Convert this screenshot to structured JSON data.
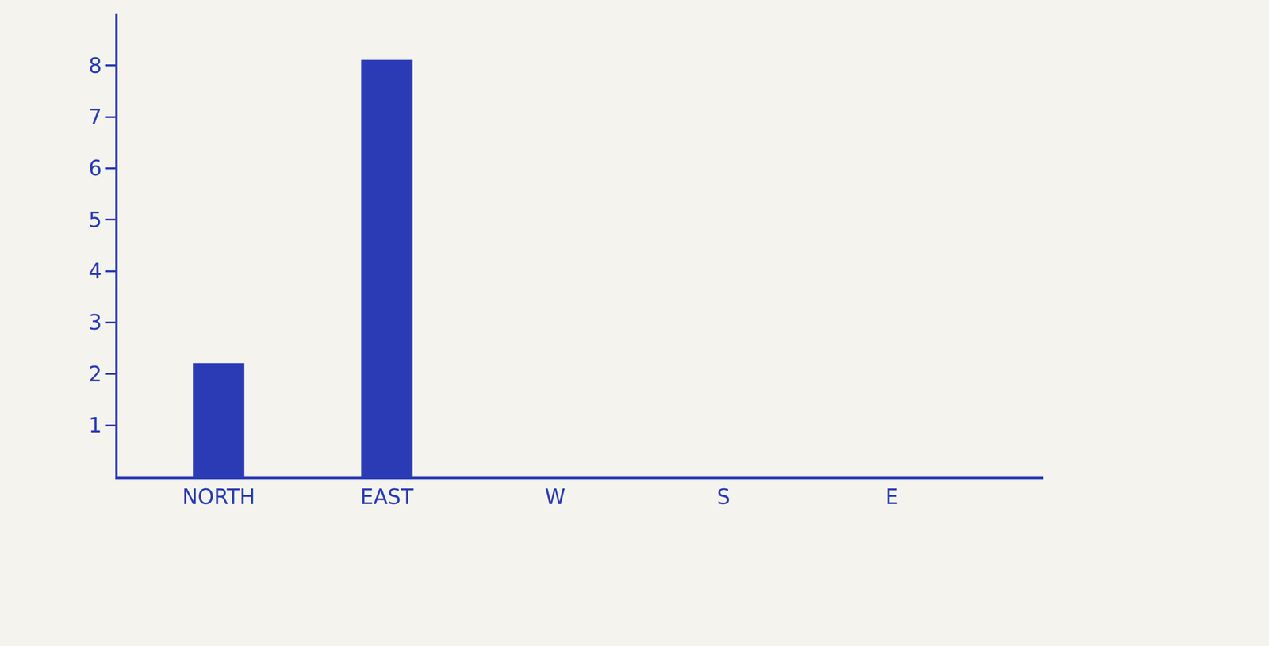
{
  "chart_data": {
    "type": "bar",
    "categories": [
      "NORTH",
      "EAST",
      "W",
      "S",
      "E"
    ],
    "values": [
      2.2,
      8.1,
      null,
      null,
      null
    ],
    "color": "#2b3bb5",
    "ylim": [
      0,
      9
    ],
    "yticks": [
      1,
      2,
      3,
      4,
      5,
      6,
      7,
      8
    ],
    "grid": false
  }
}
